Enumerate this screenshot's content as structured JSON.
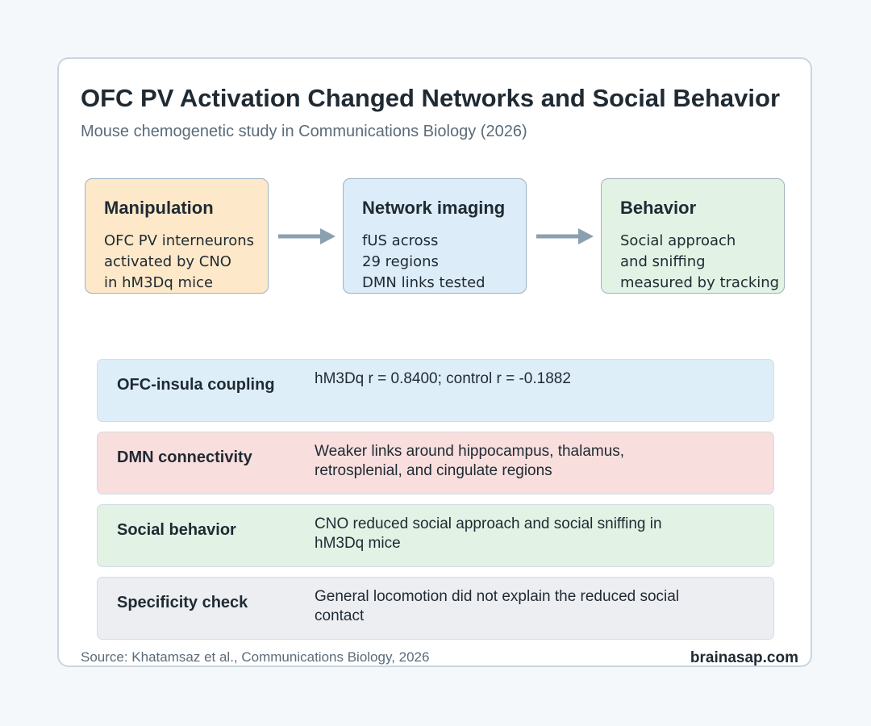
{
  "header": {
    "title": "OFC PV Activation Changed Networks and Social Behavior",
    "subtitle": "Mouse chemogenetic study in Communications Biology (2026)"
  },
  "flow": [
    {
      "title": "Manipulation",
      "lines": [
        "OFC PV interneurons",
        "activated by CNO",
        "in hM3Dq mice"
      ],
      "color": "#fde8c9"
    },
    {
      "title": "Network imaging",
      "lines": [
        "fUS across",
        "29 regions",
        "DMN links tested"
      ],
      "color": "#dcecf8"
    },
    {
      "title": "Behavior",
      "lines": [
        "Social approach",
        "and sniffing",
        "measured by tracking"
      ],
      "color": "#e2f2e4"
    }
  ],
  "findings": [
    {
      "label": "OFC-insula coupling",
      "lines": [
        "hM3Dq r = 0.8400; control r = -0.1882"
      ],
      "color": "#deeef9"
    },
    {
      "label": "DMN connectivity",
      "lines": [
        "Weaker links around hippocampus, thalamus,",
        "retrosplenial, and cingulate regions"
      ],
      "color": "#f8dedd"
    },
    {
      "label": "Social behavior",
      "lines": [
        "CNO reduced social approach and social sniffing in",
        "hM3Dq mice"
      ],
      "color": "#e2f2e4"
    },
    {
      "label": "Specificity check",
      "lines": [
        "General locomotion did not explain the reduced social",
        "contact"
      ],
      "color": "#eceef2"
    }
  ],
  "footer": {
    "source": "Source: Khatamsaz et al., Communications Biology, 2026",
    "brand": "brainasap.com"
  },
  "colors": {
    "arrow": "#8aa0ae",
    "box_border": "#9fb2c0",
    "card_border": "#c9d6df",
    "background": "#f5f8fb"
  }
}
